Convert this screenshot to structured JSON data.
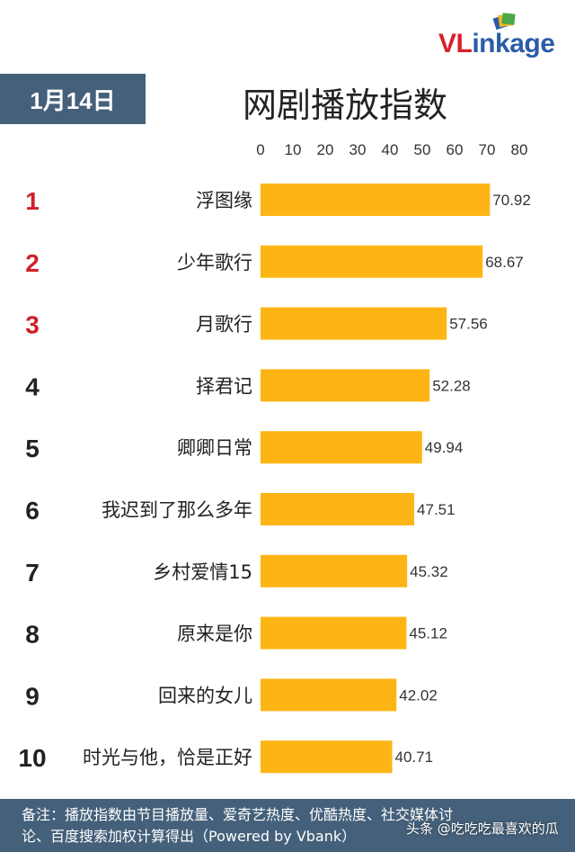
{
  "logo": {
    "text_red": "VL",
    "text_blue": "inkage"
  },
  "date_label": "1月14日",
  "title": "网剧播放指数",
  "chart_data": {
    "type": "bar",
    "orientation": "horizontal",
    "ranks": [
      "1",
      "2",
      "3",
      "4",
      "5",
      "6",
      "7",
      "8",
      "9",
      "10"
    ],
    "categories": [
      "浮图缘",
      "少年歌行",
      "月歌行",
      "择君记",
      "卿卿日常",
      "我迟到了那么多年",
      "乡村爱情15",
      "原来是你",
      "回来的女儿",
      "时光与他，恰是正好"
    ],
    "values": [
      70.92,
      68.67,
      57.56,
      52.28,
      49.94,
      47.51,
      45.32,
      45.12,
      42.02,
      40.71
    ],
    "value_labels": [
      "70.92",
      "68.67",
      "57.56",
      "52.28",
      "49.94",
      "47.51",
      "45.32",
      "45.12",
      "42.02",
      "40.71"
    ],
    "xticks": [
      "0",
      "10",
      "20",
      "30",
      "40",
      "50",
      "60",
      "70",
      "80"
    ],
    "xlim": [
      0,
      80
    ],
    "grid": false,
    "bar_color": "#fdb515",
    "top_rank_color": "#d0202a",
    "rank_color": "#222222"
  },
  "footnote": {
    "line1": "备注：播放指数由节目播放量、爱奇艺热度、优酷热度、社交媒体讨",
    "line2": "论、百度搜索加权计算得出（Powered by Vbank）"
  },
  "watermark": "头条 @吃吃吃最喜欢的瓜"
}
